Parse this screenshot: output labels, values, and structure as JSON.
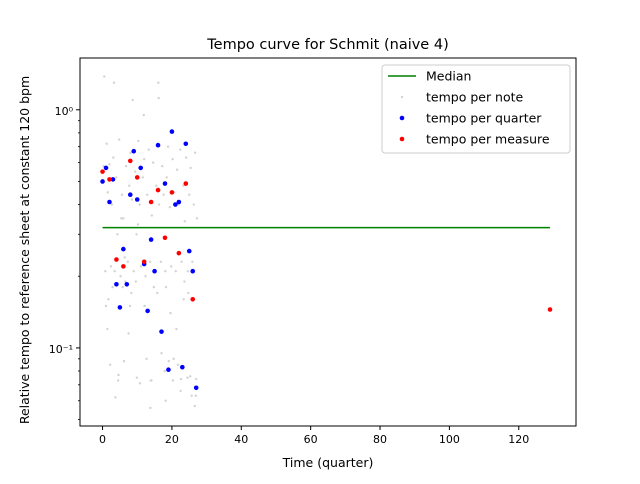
{
  "chart_data": {
    "type": "scatter",
    "title": "Tempo curve for Schmit (naive 4)",
    "xlabel": "Time (quarter)",
    "ylabel": "Relative tempo to reference sheet at constant 120 bpm",
    "xlim": [
      -6.5,
      136.5
    ],
    "ylim": [
      0.047,
      1.65
    ],
    "yscale": "log",
    "grid": false,
    "legend_position": "top-right",
    "x_ticks": [
      0,
      20,
      40,
      60,
      80,
      100,
      120
    ],
    "x_tick_labels": [
      "0",
      "20",
      "40",
      "60",
      "80",
      "100",
      "120"
    ],
    "y_ticks": [
      0.1,
      1.0
    ],
    "y_tick_labels": [
      "10⁻¹",
      "10⁰"
    ],
    "legend": [
      "Median",
      "tempo per note",
      "tempo per quarter",
      "tempo per measure"
    ],
    "colors": {
      "median": "#008000",
      "note": "#d3d3d3",
      "quarter": "#0000ff",
      "measure": "#ff0000"
    },
    "series": [
      {
        "name": "Median",
        "kind": "line",
        "x": [
          0,
          129
        ],
        "y": [
          0.32,
          0.32
        ]
      },
      {
        "name": "tempo per note",
        "kind": "scatter",
        "x": [
          0.3,
          0.8,
          1.2,
          1.5,
          2.0,
          2.4,
          2.7,
          3.1,
          3.5,
          4.0,
          4.3,
          4.8,
          5.2,
          5.6,
          6.0,
          6.4,
          6.8,
          7.3,
          7.7,
          8.1,
          8.5,
          9.0,
          9.4,
          9.8,
          10.3,
          10.7,
          11.1,
          11.6,
          12.0,
          12.4,
          12.9,
          13.3,
          13.7,
          14.2,
          14.6,
          15.0,
          15.5,
          15.9,
          16.3,
          16.8,
          17.2,
          17.6,
          18.1,
          18.5,
          18.9,
          19.4,
          19.8,
          20.2,
          20.7,
          21.1,
          21.5,
          22.0,
          22.4,
          22.8,
          23.3,
          23.7,
          24.1,
          24.6,
          25.0,
          25.4,
          25.9,
          26.3,
          26.7,
          27.2,
          0.5,
          1.4,
          2.2,
          3.3,
          4.5,
          5.4,
          6.6,
          7.5,
          8.7,
          9.6,
          10.8,
          11.9,
          12.7,
          13.9,
          14.8,
          16.1,
          17.0,
          18.2,
          19.1,
          20.3,
          21.3,
          22.5,
          23.6,
          24.5,
          25.7,
          26.6,
          1.7,
          3.7,
          5.8,
          7.9,
          9.9,
          12.1,
          14.1,
          16.2,
          18.3,
          20.5,
          22.6,
          24.7,
          26.9,
          1.0,
          2.9,
          4.6,
          6.2,
          8.3,
          10.2,
          12.2,
          13.8,
          15.8,
          17.9,
          19.6,
          21.7,
          23.4,
          25.3,
          27.0
        ],
        "y": [
          0.58,
          0.21,
          0.72,
          0.45,
          0.59,
          0.22,
          0.4,
          0.63,
          0.21,
          0.52,
          0.3,
          0.75,
          0.2,
          0.44,
          0.35,
          0.24,
          0.58,
          0.23,
          0.48,
          0.66,
          0.42,
          0.21,
          0.55,
          0.3,
          0.74,
          0.4,
          0.22,
          0.52,
          0.62,
          0.2,
          0.44,
          0.68,
          0.23,
          0.36,
          0.6,
          0.21,
          0.48,
          0.72,
          0.4,
          0.23,
          0.58,
          0.44,
          0.21,
          0.52,
          0.7,
          0.39,
          0.22,
          0.62,
          0.45,
          0.21,
          0.56,
          0.4,
          0.68,
          0.23,
          0.48,
          0.34,
          0.63,
          0.21,
          0.44,
          0.57,
          0.23,
          0.4,
          0.66,
          0.35,
          1.38,
          0.12,
          0.085,
          1.3,
          0.073,
          0.35,
          0.19,
          0.115,
          1.1,
          0.19,
          0.071,
          0.95,
          0.09,
          0.073,
          0.18,
          1.3,
          0.095,
          0.06,
          0.088,
          0.073,
          0.12,
          0.066,
          0.19,
          0.075,
          0.063,
          0.057,
          0.16,
          0.062,
          0.18,
          0.15,
          0.075,
          0.15,
          0.073,
          1.12,
          0.18,
          0.09,
          0.074,
          0.17,
          0.063,
          0.15,
          0.18,
          0.077,
          0.088,
          0.17,
          0.33,
          0.15,
          0.056,
          0.17,
          0.08,
          0.14,
          0.085,
          0.16,
          0.076,
          0.074
        ]
      },
      {
        "name": "tempo per quarter",
        "kind": "scatter",
        "x": [
          0,
          1,
          2,
          3,
          4,
          5,
          6,
          7,
          8,
          9,
          10,
          11,
          12,
          13,
          14,
          15,
          16,
          17,
          18,
          19,
          20,
          21,
          22,
          23,
          24,
          25,
          26,
          27
        ],
        "y": [
          0.5,
          0.57,
          0.41,
          0.51,
          0.185,
          0.148,
          0.26,
          0.185,
          0.44,
          0.67,
          0.42,
          0.57,
          0.225,
          0.143,
          0.285,
          0.21,
          0.71,
          0.117,
          0.49,
          0.081,
          0.81,
          0.4,
          0.41,
          0.083,
          0.72,
          0.255,
          0.21,
          0.068
        ]
      },
      {
        "name": "tempo per measure",
        "kind": "scatter",
        "x": [
          0,
          2,
          4,
          6,
          8,
          10,
          12,
          14,
          16,
          18,
          20,
          22,
          24,
          26,
          129
        ],
        "y": [
          0.55,
          0.51,
          0.235,
          0.22,
          0.61,
          0.52,
          0.23,
          0.41,
          0.46,
          0.29,
          0.45,
          0.25,
          0.49,
          0.16,
          0.145
        ]
      }
    ]
  }
}
